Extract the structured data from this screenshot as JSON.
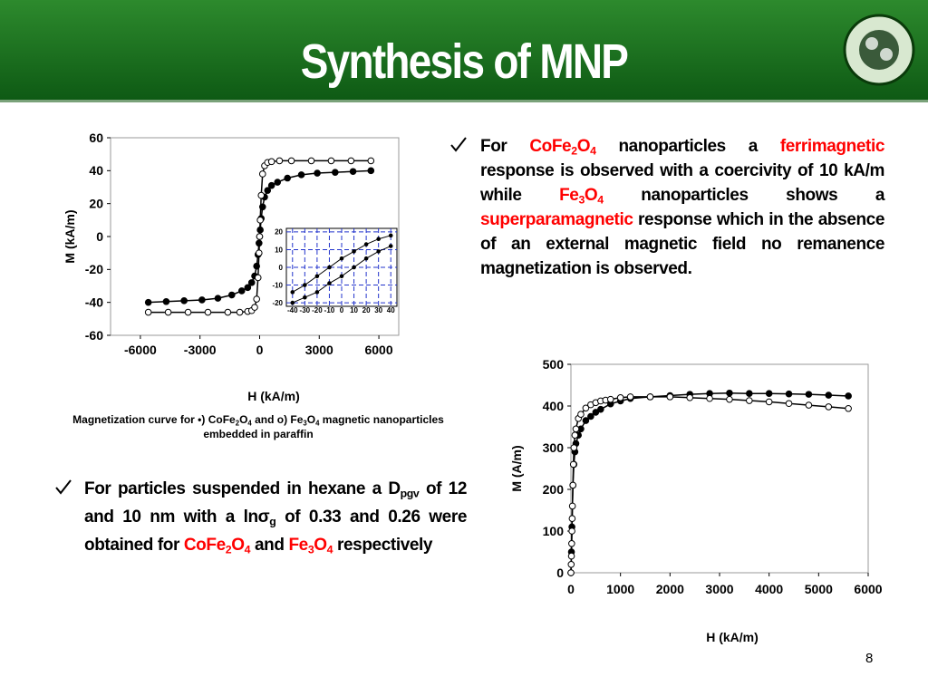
{
  "header": {
    "title": "Synthesis of MNP"
  },
  "bullets": [
    {
      "segments": [
        {
          "text": "For "
        },
        {
          "text": "CoFe",
          "color": "#ff0000"
        },
        {
          "text": "2",
          "color": "#ff0000",
          "sub": true
        },
        {
          "text": "O",
          "color": "#ff0000"
        },
        {
          "text": "4",
          "color": "#ff0000",
          "sub": true
        },
        {
          "text": " nanoparticles a "
        },
        {
          "text": "ferrimagnetic",
          "color": "#ff0000"
        },
        {
          "text": " response is observed with a coercivity of 10 kA/m while "
        },
        {
          "text": "Fe",
          "color": "#ff0000"
        },
        {
          "text": "3",
          "color": "#ff0000",
          "sub": true
        },
        {
          "text": "O",
          "color": "#ff0000"
        },
        {
          "text": "4",
          "color": "#ff0000",
          "sub": true
        },
        {
          "text": " nanoparticles shows a "
        },
        {
          "text": "superparamagnetic",
          "color": "#ff0000"
        },
        {
          "text": " response which in the absence of an external magnetic field no remanence magnetization is observed."
        }
      ]
    },
    {
      "segments": [
        {
          "text": "For particles suspended in hexane a D"
        },
        {
          "text": "pgv",
          "sub": true
        },
        {
          "text": " of 12 and 10 nm with a ln"
        },
        {
          "text": "σ"
        },
        {
          "text": "g",
          "sub": true
        },
        {
          "text": " of 0.33 and 0.26 were obtained for "
        },
        {
          "text": "CoFe",
          "color": "#ff0000"
        },
        {
          "text": "2",
          "color": "#ff0000",
          "sub": true
        },
        {
          "text": "O",
          "color": "#ff0000"
        },
        {
          "text": "4",
          "color": "#ff0000",
          "sub": true
        },
        {
          "text": " and "
        },
        {
          "text": "Fe",
          "color": "#ff0000"
        },
        {
          "text": "3",
          "color": "#ff0000",
          "sub": true
        },
        {
          "text": "O",
          "color": "#ff0000"
        },
        {
          "text": "4",
          "color": "#ff0000",
          "sub": true
        },
        {
          "text": " respectively"
        }
      ]
    }
  ],
  "caption": {
    "segments": [
      {
        "text": "Magnetization curve for •) CoFe"
      },
      {
        "text": "2",
        "sub": true
      },
      {
        "text": "O"
      },
      {
        "text": "4",
        "sub": true
      },
      {
        "text": " and ο) Fe"
      },
      {
        "text": "3",
        "sub": true
      },
      {
        "text": "O"
      },
      {
        "text": "4",
        "sub": true
      },
      {
        "text": " magnetic nanoparticles embedded in paraffin"
      }
    ]
  },
  "page_number": "8",
  "chart_data": [
    {
      "type": "line",
      "x_label": "H (kA/m)",
      "y_label": "M (kA/m)",
      "xlim": [
        -7500,
        7000
      ],
      "xticks": [
        -6000,
        -3000,
        0,
        3000,
        6000
      ],
      "ylim": [
        -60,
        60
      ],
      "yticks": [
        -60,
        -40,
        -20,
        0,
        20,
        40,
        60
      ],
      "grid": false,
      "series": [
        {
          "color": "#000000",
          "marker": "filled",
          "x": [
            -5600,
            -4700,
            -3800,
            -2900,
            -2100,
            -1400,
            -900,
            -600,
            -400,
            -250,
            -150,
            -80,
            -30,
            0,
            30,
            80,
            150,
            250,
            400,
            600,
            900,
            1400,
            2100,
            2900,
            3800,
            4700,
            5600
          ],
          "values": [
            -40,
            -39.5,
            -39,
            -38.5,
            -37.5,
            -35.5,
            -33,
            -31,
            -28,
            -24,
            -18,
            -11,
            -4,
            0,
            4,
            11,
            18,
            24,
            28,
            31,
            33,
            35.5,
            37.5,
            38.5,
            39,
            39.5,
            40
          ]
        },
        {
          "color": "#000000",
          "marker": "open",
          "x": [
            -5600,
            -4600,
            -3600,
            -2600,
            -1600,
            -1000,
            -600,
            -400,
            -250,
            -150,
            -80,
            -30,
            0,
            30,
            80,
            150,
            250,
            400,
            600,
            1000,
            1600,
            2600,
            3600,
            4600,
            5600
          ],
          "values": [
            -46,
            -46,
            -46,
            -46,
            -46,
            -46,
            -45.5,
            -45,
            -43,
            -38,
            -25,
            -10,
            0,
            10,
            25,
            38,
            43,
            45,
            45.5,
            46,
            46,
            46,
            46,
            46,
            46
          ]
        }
      ]
    },
    {
      "type": "line",
      "xlim": [
        -45,
        45
      ],
      "xticks": [
        -40,
        -30,
        -20,
        -10,
        0,
        10,
        20,
        30,
        40
      ],
      "ylim": [
        -22,
        22
      ],
      "yticks": [
        -20,
        -10,
        0,
        10,
        20
      ],
      "grid": true,
      "grid_color": "#2233cc",
      "series": [
        {
          "color": "#000000",
          "marker": "small",
          "x": [
            -40,
            -30,
            -20,
            -10,
            0,
            10,
            20,
            30,
            40
          ],
          "values": [
            -14,
            -10,
            -5,
            0,
            5,
            9,
            13,
            16,
            18
          ]
        },
        {
          "color": "#000000",
          "marker": "small",
          "x": [
            -40,
            -30,
            -20,
            -10,
            0,
            10,
            20,
            30,
            40
          ],
          "values": [
            -20,
            -17,
            -14,
            -9,
            -5,
            0,
            5,
            9,
            12
          ]
        }
      ]
    },
    {
      "type": "line",
      "x_label": "H (kA/m)",
      "y_label": "M (A/m)",
      "xlim": [
        0,
        6000
      ],
      "xticks": [
        0,
        1000,
        2000,
        3000,
        4000,
        5000,
        6000
      ],
      "ylim": [
        0,
        500
      ],
      "yticks": [
        0,
        100,
        200,
        300,
        400,
        500
      ],
      "grid": false,
      "series": [
        {
          "color": "#000000",
          "marker": "filled",
          "x": [
            0,
            10,
            20,
            40,
            60,
            80,
            100,
            150,
            200,
            300,
            400,
            500,
            600,
            800,
            1000,
            1200,
            1600,
            2000,
            2400,
            2800,
            3200,
            3600,
            4000,
            4400,
            4800,
            5200,
            5600
          ],
          "values": [
            0,
            50,
            110,
            210,
            260,
            290,
            310,
            330,
            345,
            365,
            375,
            385,
            392,
            405,
            412,
            418,
            422,
            425,
            428,
            430,
            431,
            430,
            430,
            429,
            428,
            426,
            424
          ]
        },
        {
          "color": "#000000",
          "marker": "open",
          "x": [
            0,
            5,
            10,
            15,
            20,
            25,
            30,
            40,
            50,
            60,
            80,
            100,
            150,
            200,
            300,
            400,
            500,
            600,
            700,
            800,
            1000,
            1200,
            1600,
            2000,
            2400,
            2800,
            3200,
            3600,
            4000,
            4400,
            4800,
            5200,
            5600
          ],
          "values": [
            0,
            20,
            40,
            70,
            100,
            130,
            160,
            210,
            260,
            300,
            330,
            345,
            370,
            380,
            395,
            403,
            408,
            412,
            414,
            416,
            420,
            422,
            422,
            422,
            420,
            418,
            416,
            413,
            410,
            406,
            402,
            398,
            394
          ]
        }
      ]
    }
  ]
}
